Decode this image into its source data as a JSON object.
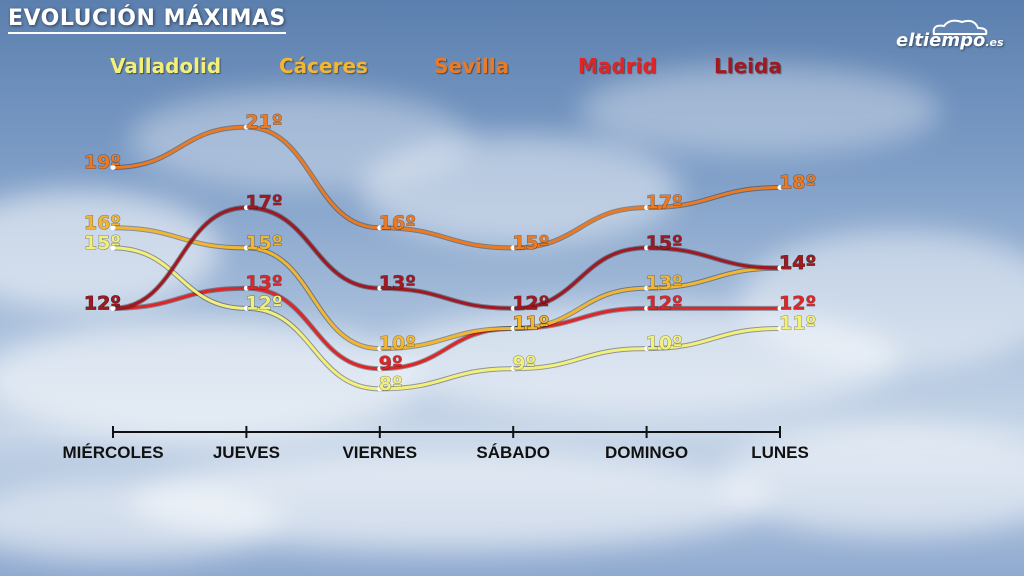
{
  "title": "EVOLUCIÓN MÁXIMAS",
  "brand": {
    "name": "eltiempo",
    "suffix": ".es"
  },
  "chart_data": {
    "type": "line",
    "title": "EVOLUCIÓN MÁXIMAS",
    "categories": [
      "MIÉRCOLES",
      "JUEVES",
      "VIERNES",
      "SÁBADO",
      "DOMINGO",
      "LUNES"
    ],
    "unit": "º",
    "series": [
      {
        "name": "Valladolid",
        "color": "#f3f07a",
        "values": [
          15,
          12,
          8,
          9,
          10,
          11
        ]
      },
      {
        "name": "Cáceres",
        "color": "#f2b632",
        "values": [
          16,
          15,
          10,
          11,
          13,
          14
        ]
      },
      {
        "name": "Sevilla",
        "color": "#ec7a22",
        "values": [
          19,
          21,
          16,
          15,
          17,
          18
        ]
      },
      {
        "name": "Madrid",
        "color": "#de2628",
        "values": [
          12,
          13,
          9,
          11,
          12,
          12
        ]
      },
      {
        "name": "Lleida",
        "color": "#a01820",
        "values": [
          12,
          17,
          13,
          12,
          15,
          14
        ]
      }
    ],
    "ylim": [
      7,
      22
    ],
    "grid": false,
    "legend": "top"
  }
}
